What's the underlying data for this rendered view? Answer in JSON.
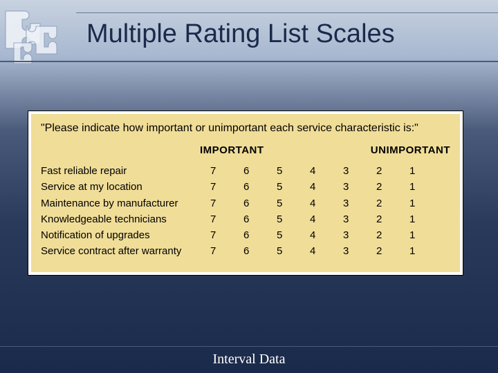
{
  "title": "Multiple Rating List Scales",
  "footer": "Interval Data",
  "rating": {
    "prompt": "\"Please indicate how important or unimportant each service characteristic is:\"",
    "header_left": "IMPORTANT",
    "header_right": "UNIMPORTANT",
    "scale": [
      "7",
      "6",
      "5",
      "4",
      "3",
      "2",
      "1"
    ],
    "items": [
      "Fast reliable repair",
      "Service at my location",
      "Maintenance by manufacturer",
      "Knowledgeable technicians",
      "Notification of upgrades",
      "Service contract after warranty"
    ],
    "box_bg": "#f0dd98",
    "outer_bg": "#ffffff",
    "text_color": "#000000",
    "prompt_fontsize": 16,
    "header_fontsize": 15,
    "row_fontsize": 15
  },
  "colors": {
    "title_color": "#1a2a4a",
    "footer_color": "#ffffff",
    "bg_gradient_top": "#c8d2e0",
    "bg_gradient_bottom": "#1a2a4a"
  }
}
